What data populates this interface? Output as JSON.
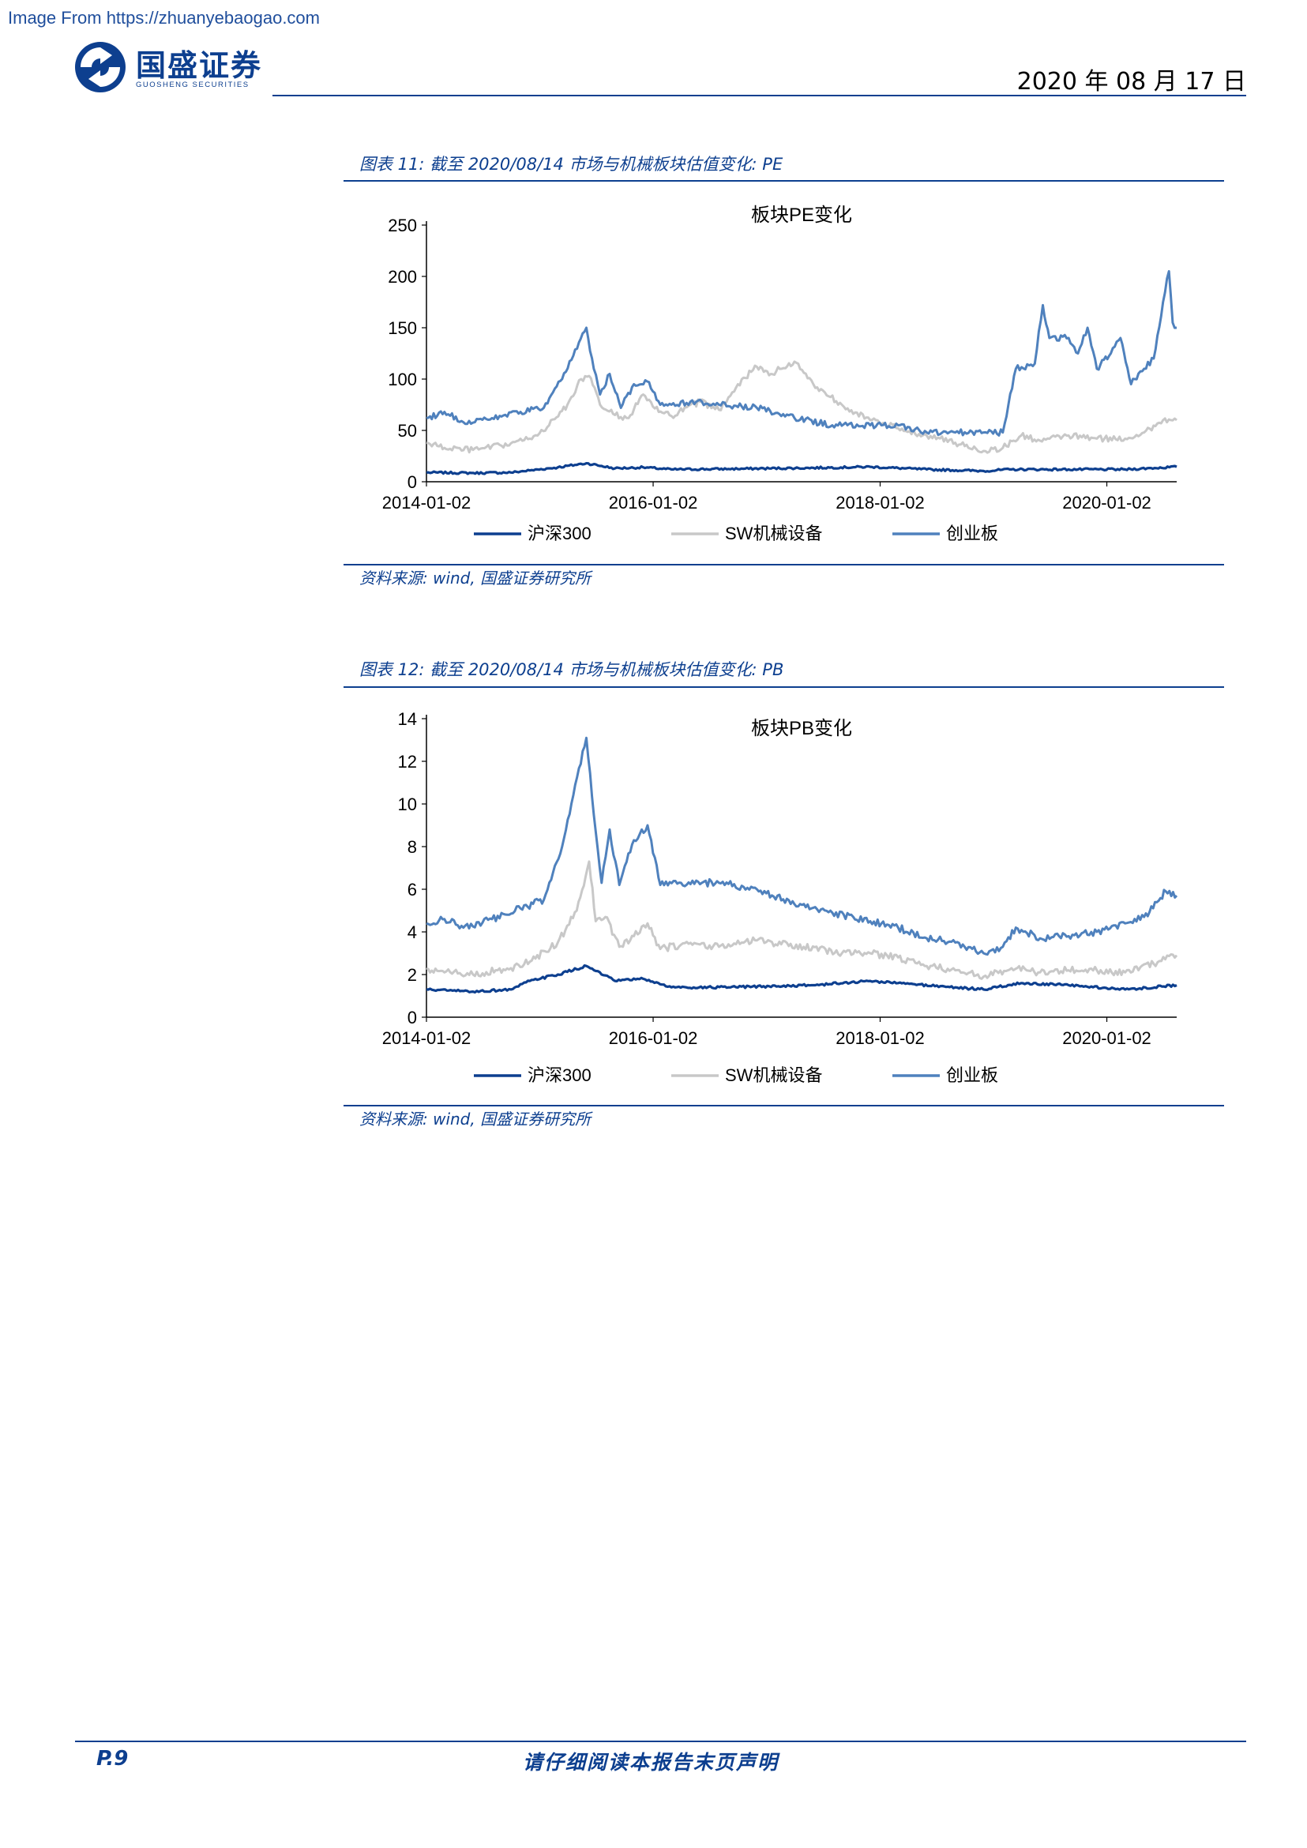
{
  "watermark": "Image From https://zhuanyebaogao.com",
  "header": {
    "brand_cn": "国盛证券",
    "brand_en": "GUOSHENG SECURITIES",
    "date": "2020 年 08 月 17 日"
  },
  "figures": [
    {
      "caption": "图表 11:  截至 2020/08/14 市场与机械板块估值变化:  PE",
      "source": "资料来源:  wind,  国盛证券研究所"
    },
    {
      "caption": "图表 12:  截至 2020/08/14 市场与机械板块估值变化:  PB",
      "source": "资料来源:  wind,  国盛证券研究所"
    }
  ],
  "chart_data": [
    {
      "type": "line",
      "title": "板块PE变化",
      "xlabel": "",
      "ylabel": "",
      "ylim": [
        0,
        250
      ],
      "yticks": [
        0,
        50,
        100,
        150,
        200,
        250
      ],
      "xtick_labels": [
        "2014-01-02",
        "2016-01-02",
        "2018-01-02",
        "2020-01-02"
      ],
      "xtick_dates": [
        "2014-01-02",
        "2016-01-02",
        "2018-01-02",
        "2020-01-02"
      ],
      "xlim": [
        "2014-01-02",
        "2020-08-14"
      ],
      "legend_position": "bottom",
      "grid": false,
      "series": [
        {
          "name": "沪深300",
          "color": "#0d3f8f",
          "points": [
            [
              "2014-01-02",
              9
            ],
            [
              "2014-06-02",
              8.5
            ],
            [
              "2014-10-01",
              9
            ],
            [
              "2014-12-01",
              11
            ],
            [
              "2015-03-01",
              14
            ],
            [
              "2015-06-01",
              18
            ],
            [
              "2015-09-01",
              13
            ],
            [
              "2015-12-01",
              14
            ],
            [
              "2016-03-01",
              12
            ],
            [
              "2016-09-01",
              12.5
            ],
            [
              "2017-06-01",
              13.5
            ],
            [
              "2017-12-01",
              14.5
            ],
            [
              "2018-06-01",
              12
            ],
            [
              "2018-12-01",
              10.5
            ],
            [
              "2019-03-01",
              12
            ],
            [
              "2019-09-01",
              12
            ],
            [
              "2020-03-01",
              12
            ],
            [
              "2020-08-14",
              14.5
            ]
          ]
        },
        {
          "name": "SW机械设备",
          "color": "#c8c8c8",
          "points": [
            [
              "2014-01-02",
              38
            ],
            [
              "2014-03-01",
              33
            ],
            [
              "2014-06-01",
              31
            ],
            [
              "2014-09-01",
              35
            ],
            [
              "2014-12-01",
              42
            ],
            [
              "2015-02-01",
              55
            ],
            [
              "2015-04-01",
              75
            ],
            [
              "2015-05-15",
              100
            ],
            [
              "2015-06-10",
              103
            ],
            [
              "2015-07-15",
              75
            ],
            [
              "2015-09-01",
              65
            ],
            [
              "2015-10-15",
              62
            ],
            [
              "2015-12-01",
              85
            ],
            [
              "2016-01-20",
              68
            ],
            [
              "2016-03-01",
              64
            ],
            [
              "2016-06-01",
              78
            ],
            [
              "2016-08-01",
              70
            ],
            [
              "2016-10-01",
              95
            ],
            [
              "2016-12-01",
              112
            ],
            [
              "2017-01-15",
              105
            ],
            [
              "2017-04-01",
              117
            ],
            [
              "2017-06-01",
              95
            ],
            [
              "2017-09-01",
              75
            ],
            [
              "2017-12-01",
              60
            ],
            [
              "2018-03-01",
              52
            ],
            [
              "2018-06-01",
              45
            ],
            [
              "2018-09-01",
              38
            ],
            [
              "2018-12-01",
              30
            ],
            [
              "2019-02-01",
              33
            ],
            [
              "2019-04-01",
              45
            ],
            [
              "2019-06-01",
              40
            ],
            [
              "2019-09-01",
              45
            ],
            [
              "2019-12-01",
              42
            ],
            [
              "2020-03-01",
              42
            ],
            [
              "2020-05-01",
              48
            ],
            [
              "2020-07-01",
              60
            ],
            [
              "2020-08-14",
              60
            ]
          ]
        },
        {
          "name": "创业板",
          "color": "#4f81bd",
          "points": [
            [
              "2014-01-02",
              62
            ],
            [
              "2014-03-01",
              68
            ],
            [
              "2014-05-01",
              58
            ],
            [
              "2014-08-01",
              62
            ],
            [
              "2014-11-01",
              68
            ],
            [
              "2015-01-15",
              72
            ],
            [
              "2015-03-15",
              100
            ],
            [
              "2015-06-01",
              150
            ],
            [
              "2015-06-25",
              110
            ],
            [
              "2015-07-15",
              85
            ],
            [
              "2015-08-15",
              105
            ],
            [
              "2015-09-20",
              72
            ],
            [
              "2015-11-01",
              95
            ],
            [
              "2015-12-20",
              97
            ],
            [
              "2016-01-25",
              75
            ],
            [
              "2016-03-01",
              75
            ],
            [
              "2016-05-01",
              78
            ],
            [
              "2016-08-01",
              75
            ],
            [
              "2016-12-01",
              72
            ],
            [
              "2017-04-01",
              62
            ],
            [
              "2017-08-01",
              55
            ],
            [
              "2017-12-01",
              55
            ],
            [
              "2018-03-01",
              55
            ],
            [
              "2018-06-01",
              48
            ],
            [
              "2018-09-01",
              48
            ],
            [
              "2018-12-01",
              48
            ],
            [
              "2019-02-01",
              48
            ],
            [
              "2019-03-15",
              110
            ],
            [
              "2019-05-15",
              115
            ],
            [
              "2019-06-10",
              172
            ],
            [
              "2019-07-01",
              140
            ],
            [
              "2019-09-01",
              140
            ],
            [
              "2019-10-01",
              125
            ],
            [
              "2019-11-01",
              150
            ],
            [
              "2019-12-01",
              110
            ],
            [
              "2020-01-15",
              125
            ],
            [
              "2020-02-15",
              140
            ],
            [
              "2020-03-20",
              95
            ],
            [
              "2020-05-01",
              110
            ],
            [
              "2020-06-01",
              120
            ],
            [
              "2020-07-01",
              175
            ],
            [
              "2020-07-20",
              205
            ],
            [
              "2020-08-01",
              155
            ],
            [
              "2020-08-14",
              150
            ]
          ]
        }
      ]
    },
    {
      "type": "line",
      "title": "板块PB变化",
      "xlabel": "",
      "ylabel": "",
      "ylim": [
        0,
        14
      ],
      "yticks": [
        0,
        2,
        4,
        6,
        8,
        10,
        12,
        14
      ],
      "xtick_labels": [
        "2014-01-02",
        "2016-01-02",
        "2018-01-02",
        "2020-01-02"
      ],
      "xtick_dates": [
        "2014-01-02",
        "2016-01-02",
        "2018-01-02",
        "2020-01-02"
      ],
      "xlim": [
        "2014-01-02",
        "2020-08-14"
      ],
      "legend_position": "bottom",
      "grid": false,
      "series": [
        {
          "name": "沪深300",
          "color": "#0d3f8f",
          "points": [
            [
              "2014-01-02",
              1.3
            ],
            [
              "2014-06-01",
              1.2
            ],
            [
              "2014-10-01",
              1.3
            ],
            [
              "2014-12-01",
              1.7
            ],
            [
              "2015-03-01",
              2.0
            ],
            [
              "2015-06-01",
              2.4
            ],
            [
              "2015-09-01",
              1.7
            ],
            [
              "2015-12-01",
              1.8
            ],
            [
              "2016-03-01",
              1.4
            ],
            [
              "2016-09-01",
              1.4
            ],
            [
              "2017-06-01",
              1.5
            ],
            [
              "2017-12-01",
              1.7
            ],
            [
              "2018-03-01",
              1.6
            ],
            [
              "2018-09-01",
              1.4
            ],
            [
              "2018-12-01",
              1.3
            ],
            [
              "2019-04-01",
              1.6
            ],
            [
              "2019-09-01",
              1.5
            ],
            [
              "2020-03-01",
              1.3
            ],
            [
              "2020-08-14",
              1.5
            ]
          ]
        },
        {
          "name": "SW机械设备",
          "color": "#c8c8c8",
          "points": [
            [
              "2014-01-02",
              2.3
            ],
            [
              "2014-03-01",
              2.1
            ],
            [
              "2014-06-01",
              2.0
            ],
            [
              "2014-10-01",
              2.3
            ],
            [
              "2014-12-01",
              2.6
            ],
            [
              "2015-03-01",
              3.5
            ],
            [
              "2015-05-01",
              5.0
            ],
            [
              "2015-06-10",
              7.3
            ],
            [
              "2015-07-01",
              4.5
            ],
            [
              "2015-08-01",
              4.7
            ],
            [
              "2015-09-15",
              3.3
            ],
            [
              "2015-11-01",
              3.8
            ],
            [
              "2015-12-15",
              4.4
            ],
            [
              "2016-01-25",
              3.2
            ],
            [
              "2016-04-01",
              3.4
            ],
            [
              "2016-08-01",
              3.3
            ],
            [
              "2016-12-01",
              3.6
            ],
            [
              "2017-05-01",
              3.3
            ],
            [
              "2017-09-01",
              3.0
            ],
            [
              "2017-12-01",
              3.0
            ],
            [
              "2018-03-01",
              2.8
            ],
            [
              "2018-06-01",
              2.4
            ],
            [
              "2018-09-01",
              2.2
            ],
            [
              "2018-12-01",
              1.9
            ],
            [
              "2019-03-01",
              2.3
            ],
            [
              "2019-06-01",
              2.1
            ],
            [
              "2019-09-01",
              2.2
            ],
            [
              "2019-12-01",
              2.2
            ],
            [
              "2020-03-01",
              2.1
            ],
            [
              "2020-06-01",
              2.5
            ],
            [
              "2020-08-14",
              2.9
            ]
          ]
        },
        {
          "name": "创业板",
          "color": "#4f81bd",
          "points": [
            [
              "2014-01-02",
              4.4
            ],
            [
              "2014-03-01",
              4.6
            ],
            [
              "2014-05-01",
              4.2
            ],
            [
              "2014-08-01",
              4.6
            ],
            [
              "2014-11-01",
              5.1
            ],
            [
              "2015-01-15",
              5.5
            ],
            [
              "2015-03-15",
              8.0
            ],
            [
              "2015-06-01",
              13.1
            ],
            [
              "2015-06-25",
              9.5
            ],
            [
              "2015-07-20",
              6.3
            ],
            [
              "2015-08-15",
              8.8
            ],
            [
              "2015-09-15",
              6.2
            ],
            [
              "2015-11-01",
              8.3
            ],
            [
              "2015-12-15",
              9.0
            ],
            [
              "2016-01-25",
              6.2
            ],
            [
              "2016-04-01",
              6.3
            ],
            [
              "2016-08-01",
              6.3
            ],
            [
              "2016-12-01",
              6.0
            ],
            [
              "2017-04-01",
              5.3
            ],
            [
              "2017-08-01",
              4.9
            ],
            [
              "2017-12-01",
              4.5
            ],
            [
              "2018-03-01",
              4.2
            ],
            [
              "2018-06-01",
              3.7
            ],
            [
              "2018-09-01",
              3.5
            ],
            [
              "2018-12-01",
              3.0
            ],
            [
              "2019-02-01",
              3.3
            ],
            [
              "2019-03-15",
              4.2
            ],
            [
              "2019-06-01",
              3.7
            ],
            [
              "2019-09-01",
              3.8
            ],
            [
              "2019-12-01",
              4.0
            ],
            [
              "2020-03-01",
              4.4
            ],
            [
              "2020-05-01",
              4.7
            ],
            [
              "2020-07-10",
              5.9
            ],
            [
              "2020-08-14",
              5.7
            ]
          ]
        }
      ]
    }
  ],
  "footer": {
    "page": "P.9",
    "note": "请仔细阅读本报告末页声明"
  }
}
